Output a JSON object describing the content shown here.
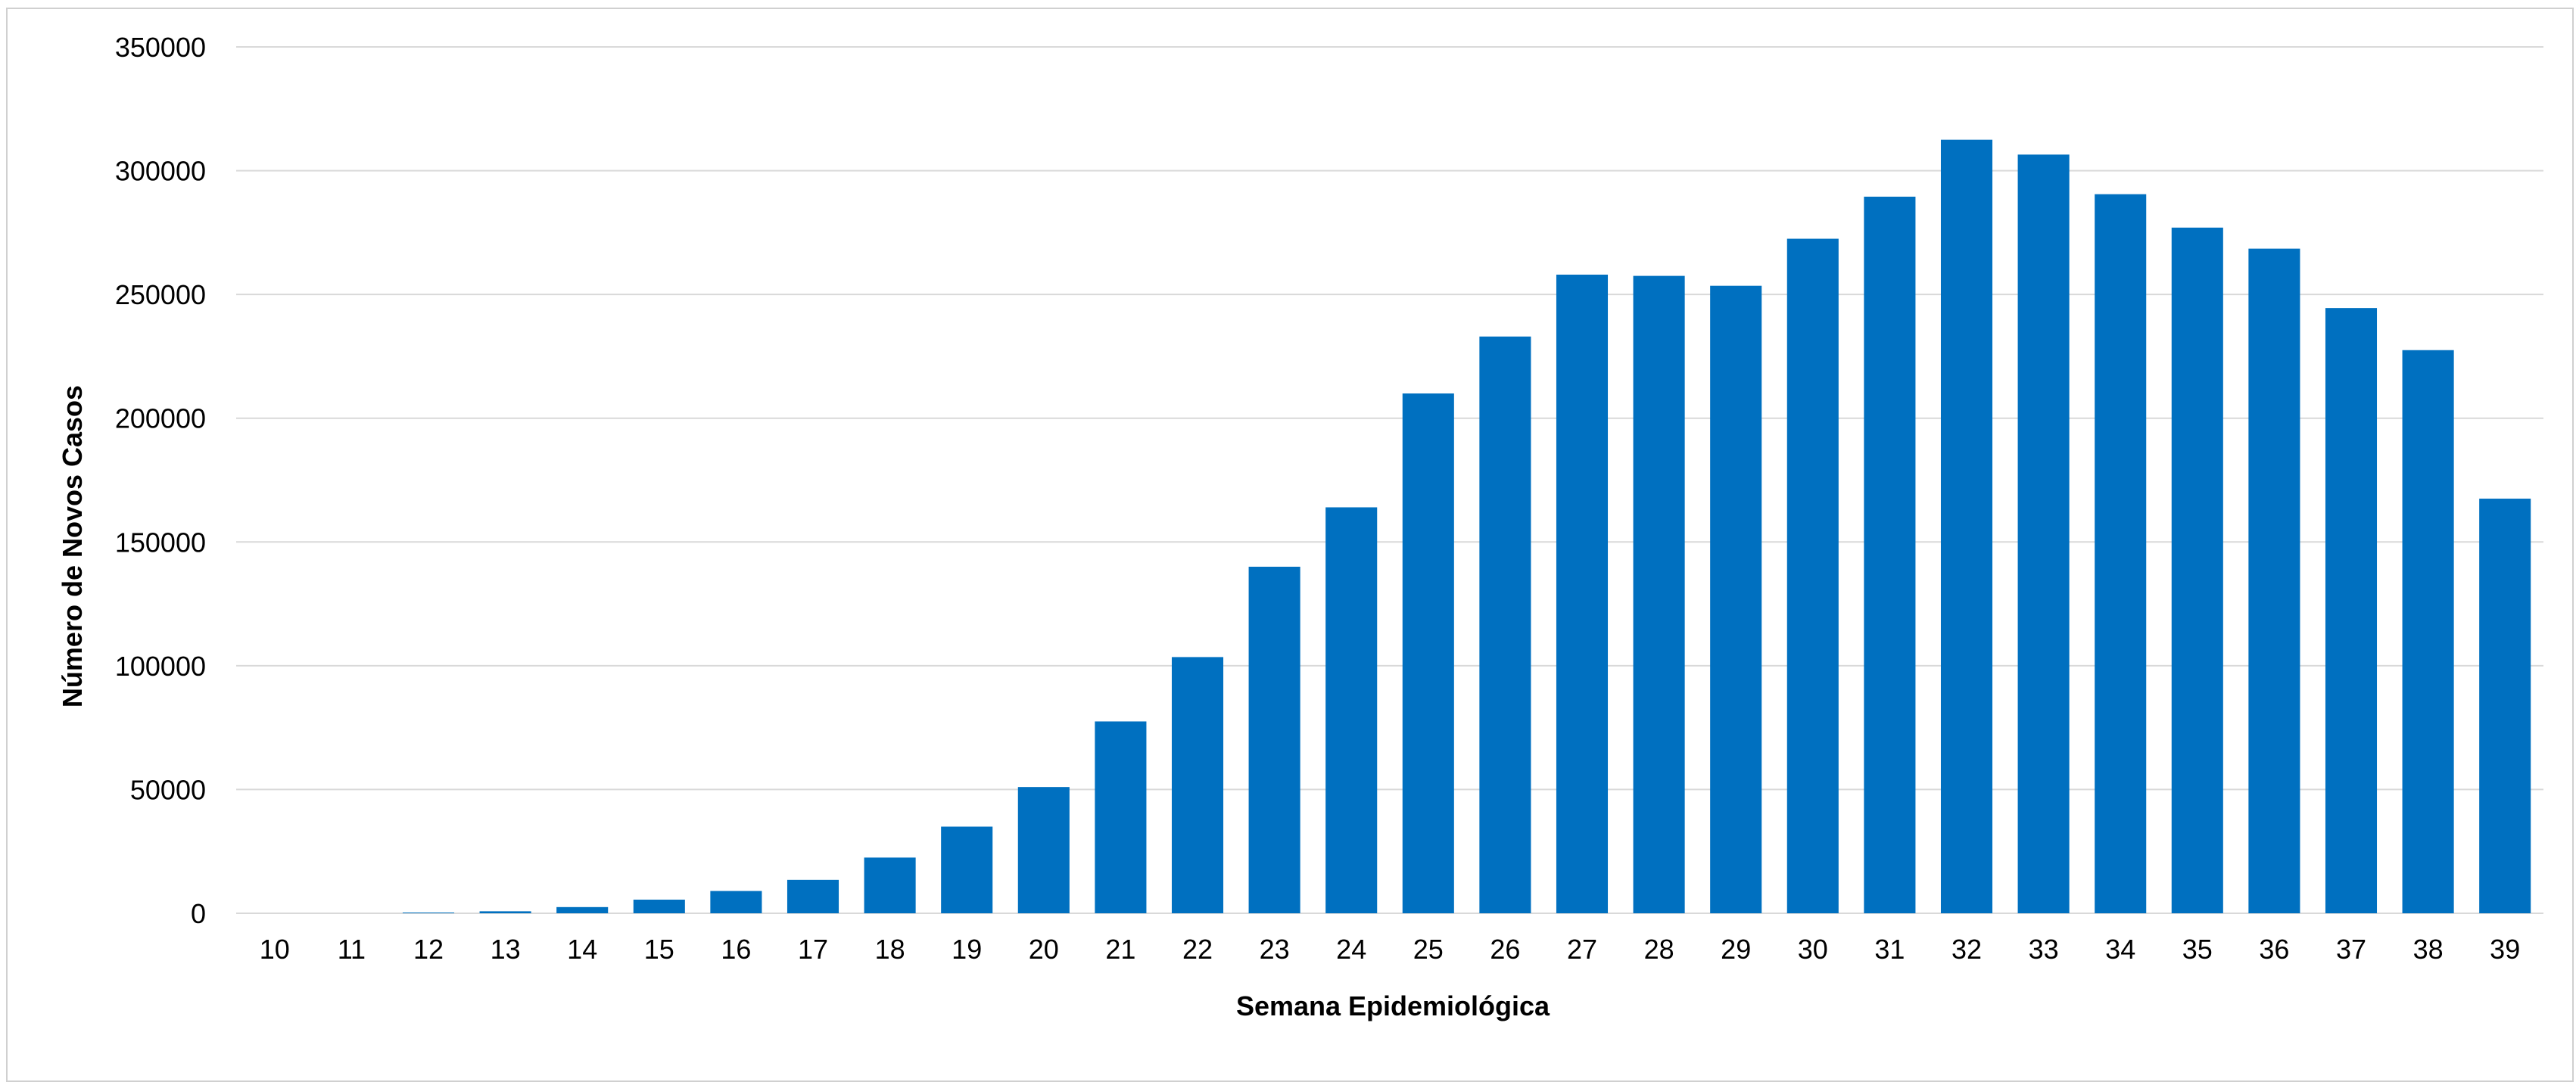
{
  "chart_data": {
    "type": "bar",
    "title": "",
    "xlabel": "Semana Epidemiológica",
    "ylabel": "Número de Novos Casos",
    "categories": [
      "10",
      "11",
      "12",
      "13",
      "14",
      "15",
      "16",
      "17",
      "18",
      "19",
      "20",
      "21",
      "22",
      "23",
      "24",
      "25",
      "26",
      "27",
      "28",
      "29",
      "30",
      "31",
      "32",
      "33",
      "34",
      "35",
      "36",
      "37",
      "38",
      "39"
    ],
    "values": [
      0,
      0,
      300,
      800,
      2500,
      5500,
      9000,
      13500,
      22500,
      35000,
      51000,
      77500,
      103500,
      140000,
      164000,
      210000,
      233000,
      258000,
      257500,
      253500,
      272500,
      289500,
      312500,
      306500,
      290500,
      277000,
      268500,
      244500,
      227500,
      167500
    ],
    "yticks": [
      "0",
      "50000",
      "100000",
      "150000",
      "200000",
      "250000",
      "300000",
      "350000"
    ],
    "ylim": [
      0,
      350000
    ],
    "grid": true,
    "legend": "none",
    "bar_color": "#0070C0",
    "grid_color": "#d9d9d9"
  }
}
